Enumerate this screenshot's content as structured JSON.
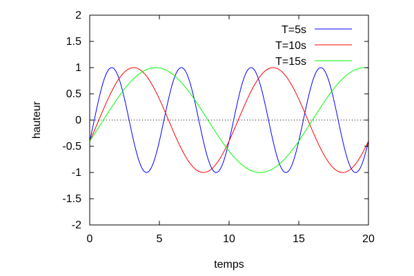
{
  "chart_data": {
    "type": "line",
    "xlabel": "temps",
    "ylabel": "hauteur",
    "xlim": [
      0,
      20
    ],
    "ylim": [
      -2,
      2
    ],
    "x_ticks": [
      "0",
      "5",
      "10",
      "15",
      "20"
    ],
    "y_ticks": [
      "-2",
      "-1.5",
      "-1",
      "-0.5",
      "0",
      "0.5",
      "1",
      "1.5",
      "2"
    ],
    "grid": false,
    "legend_position": "top-right",
    "zero_line": true,
    "series": [
      {
        "name": "T=5s",
        "color": "#0000ff",
        "function": "sin",
        "period": 5,
        "phase": -0.4115,
        "samples": 401
      },
      {
        "name": "T=10s",
        "color": "#ff0000",
        "function": "sin",
        "period": 10,
        "phase": -0.4115,
        "samples": 401
      },
      {
        "name": "T=15s",
        "color": "#00ff00",
        "function": "sin",
        "period": 15,
        "phase": -0.4115,
        "samples": 401
      }
    ]
  }
}
